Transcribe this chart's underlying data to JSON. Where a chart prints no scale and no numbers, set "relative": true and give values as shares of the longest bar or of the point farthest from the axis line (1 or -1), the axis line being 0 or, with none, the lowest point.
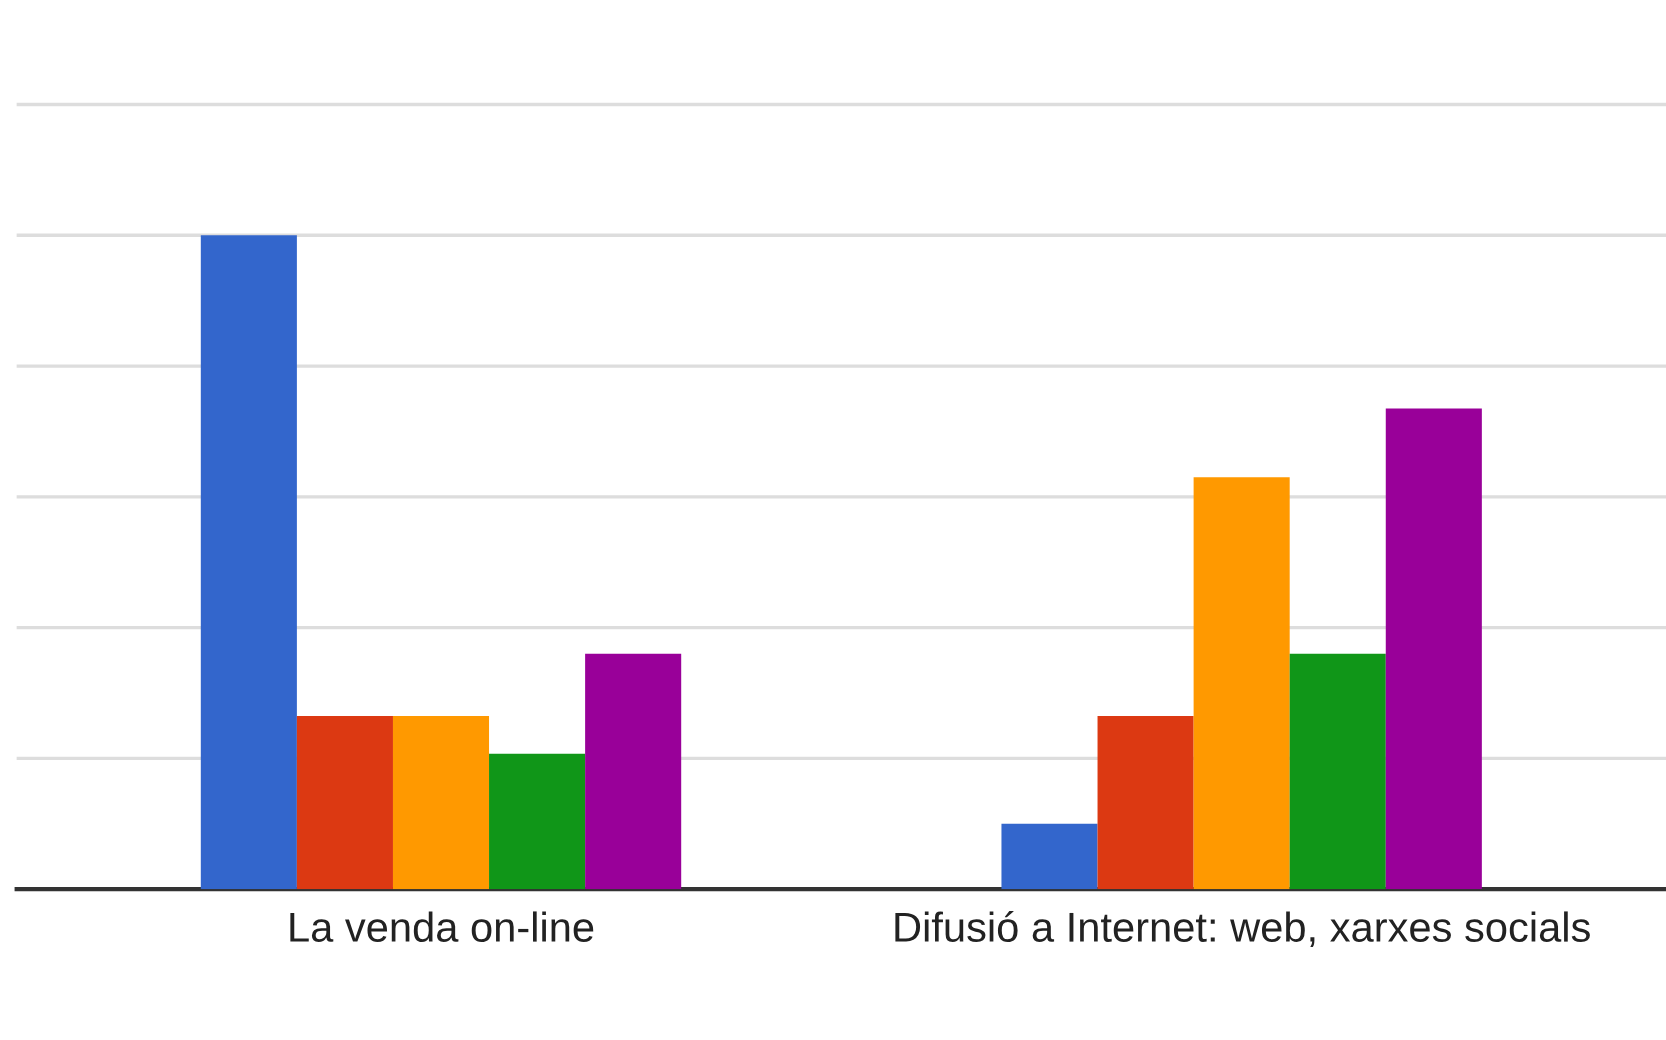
{
  "chart_data": {
    "type": "bar",
    "relative": true,
    "categories": [
      "La venda on-line",
      "Difusió a Internet: web, xarxes socials"
    ],
    "series": [
      {
        "color": "#3366cc",
        "values": [
          1,
          0.1
        ]
      },
      {
        "color": "#dc3912",
        "values": [
          0.265,
          0.265
        ]
      },
      {
        "color": "#ff9900",
        "values": [
          0.265,
          0.63
        ]
      },
      {
        "color": "#109618",
        "values": [
          0.207,
          0.36
        ]
      },
      {
        "color": "#990099",
        "values": [
          0.36,
          0.735
        ]
      }
    ],
    "grid": "y",
    "legend": false
  }
}
